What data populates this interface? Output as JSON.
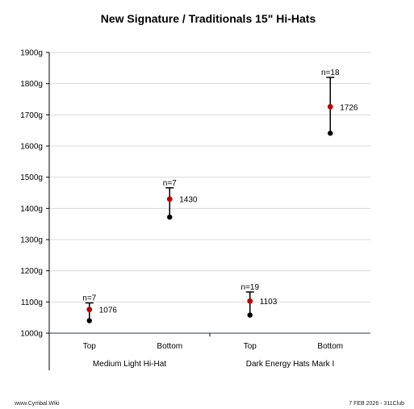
{
  "chart_data": {
    "type": "error-bar range",
    "title": "New Signature / Traditionals 15\" Hi-Hats",
    "y_unit": "g",
    "ylim": [
      1000,
      1900
    ],
    "y_ticks": [
      1000,
      1100,
      1200,
      1300,
      1400,
      1500,
      1600,
      1700,
      1800,
      1900
    ],
    "y_tick_labels": [
      "1000g",
      "1100g",
      "1200g",
      "1300g",
      "1400g",
      "1500g",
      "1600g",
      "1700g",
      "1800g",
      "1900g"
    ],
    "grid": true,
    "groups": [
      {
        "label": "Medium Light Hi-Hat",
        "items": [
          {
            "label": "Top",
            "n_label": "n=7",
            "min": 1040,
            "mean": 1076,
            "max": 1097,
            "mean_label": "1076"
          },
          {
            "label": "Bottom",
            "n_label": "n=7",
            "min": 1372,
            "mean": 1430,
            "max": 1466,
            "mean_label": "1430"
          }
        ]
      },
      {
        "label": "Dark Energy Hats Mark I",
        "items": [
          {
            "label": "Top",
            "n_label": "n=19",
            "min": 1058,
            "mean": 1103,
            "max": 1132,
            "mean_label": "1103"
          },
          {
            "label": "Bottom",
            "n_label": "n=18",
            "min": 1641,
            "mean": 1726,
            "max": 1820,
            "mean_label": "1726"
          }
        ]
      }
    ],
    "colors": {
      "mean": "#c00000",
      "min": "#000000",
      "line": "#000000",
      "grid": "#d9d9d9",
      "axis": "#1f3864"
    }
  },
  "footer": {
    "left": "www.Cymbal.Wiki",
    "right": "7 FEB 2026 - 311Club"
  }
}
